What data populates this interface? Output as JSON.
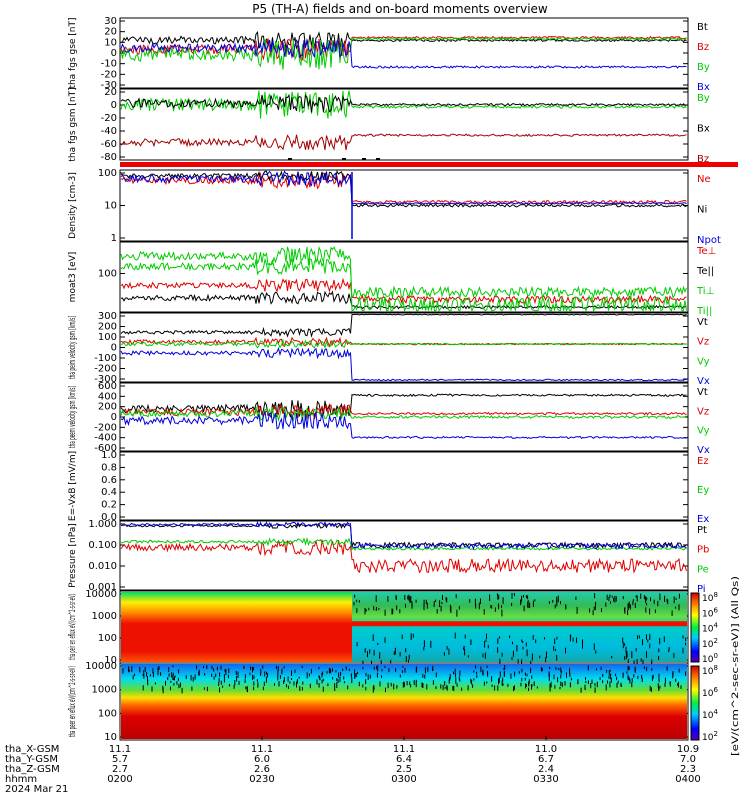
{
  "title": "P5 (TH-A) fields and on-board moments overview",
  "x_ticks": [
    "0200",
    "0230",
    "0300",
    "0330",
    "0400"
  ],
  "ephemeris": {
    "row_labels": [
      "tha_X-GSM",
      "tha_Y-GSM",
      "tha_Z-GSM",
      "hhmm",
      "2024 Mar 21"
    ],
    "x_gsm": [
      "11.1",
      "11.1",
      "11.1",
      "11.0",
      "10.9"
    ],
    "y_gsm": [
      "5.7",
      "6.0",
      "6.4",
      "6.7",
      "7.0"
    ],
    "z_gsm": [
      "2.7",
      "2.6",
      "2.5",
      "2.4",
      "2.3"
    ]
  },
  "colorbar": {
    "label": "[eV/(cm^2-sec-sr-eV)] (All Qs)",
    "ticks_top": [
      "10^8",
      "10^6",
      "10^4",
      "10^2",
      "10^0"
    ],
    "ticks_bottom": [
      "10^8",
      "10^6",
      "10^4",
      "10^2"
    ]
  },
  "colors": {
    "black": "#000000",
    "red": "#e00000",
    "green": "#00cc00",
    "blue": "#0000e0",
    "darkred": "#a00000"
  },
  "chart_data": [
    {
      "type": "line",
      "ylabel": "tha fgs gse [nT]",
      "yticks": [
        "30",
        "20",
        "10",
        "0",
        "-10",
        "-20",
        "-30"
      ],
      "legend": [
        {
          "name": "Bt",
          "color": "#000000"
        },
        {
          "name": "Bz",
          "color": "#e00000"
        },
        {
          "name": "By",
          "color": "#00cc00"
        },
        {
          "name": "Bx",
          "color": "#0000e0"
        }
      ]
    },
    {
      "type": "line",
      "ylabel": "tha fgs gsm [nT]",
      "yticks": [
        "20",
        "0",
        "-20",
        "-40",
        "-60",
        "-80"
      ],
      "legend": [
        {
          "name": "By",
          "color": "#00cc00"
        },
        {
          "name": "Bx",
          "color": "#000000"
        },
        {
          "name": "Bz",
          "color": "#a00000"
        }
      ]
    },
    {
      "type": "line",
      "ylabel": "Density [cm-3]",
      "yticks": [
        "100",
        "10",
        "1"
      ],
      "legend": [
        {
          "name": "Ne",
          "color": "#e00000"
        },
        {
          "name": "Ni",
          "color": "#000000"
        },
        {
          "name": "Npot",
          "color": "#0000e0"
        }
      ]
    },
    {
      "type": "line",
      "ylabel": "moat3 [eV]",
      "yticks": [
        "100"
      ],
      "legend": [
        {
          "name": "Te⊥",
          "color": "#e00000"
        },
        {
          "name": "Te||",
          "color": "#000000"
        },
        {
          "name": "Ti⊥",
          "color": "#00cc00"
        },
        {
          "name": "Ti||",
          "color": "#00cc00"
        }
      ]
    },
    {
      "type": "line",
      "ylabel": "tha peim velocity gsm [km/s]",
      "yticks": [
        "300",
        "200",
        "100",
        "0",
        "-100",
        "-200",
        "-300"
      ],
      "legend": [
        {
          "name": "Vt",
          "color": "#000000"
        },
        {
          "name": "Vz",
          "color": "#e00000"
        },
        {
          "name": "Vy",
          "color": "#00cc00"
        },
        {
          "name": "Vx",
          "color": "#0000e0"
        }
      ]
    },
    {
      "type": "line",
      "ylabel": "tha peem velocity gsm [km/s]",
      "yticks": [
        "600",
        "400",
        "200",
        "0",
        "-200",
        "-400",
        "-600"
      ],
      "legend": [
        {
          "name": "Vt",
          "color": "#000000"
        },
        {
          "name": "Vz",
          "color": "#e00000"
        },
        {
          "name": "Vy",
          "color": "#00cc00"
        },
        {
          "name": "Vx",
          "color": "#0000e0"
        }
      ]
    },
    {
      "type": "line",
      "ylabel": "E=-VxB [mV/m]",
      "yticks": [
        "1.0",
        "0.8",
        "0.6",
        "0.4",
        "0.2",
        "0.0"
      ],
      "legend": [
        {
          "name": "Ez",
          "color": "#e00000"
        },
        {
          "name": "Ey",
          "color": "#00cc00"
        },
        {
          "name": "Ex",
          "color": "#0000e0"
        }
      ]
    },
    {
      "type": "line",
      "ylabel": "Pressure [nPa]",
      "yticks": [
        "1.000",
        "0.100",
        "0.010",
        "0.001"
      ],
      "legend": [
        {
          "name": "Pt",
          "color": "#000000"
        },
        {
          "name": "Pb",
          "color": "#e00000"
        },
        {
          "name": "Pe",
          "color": "#00cc00"
        },
        {
          "name": "Pi",
          "color": "#0000e0"
        }
      ]
    },
    {
      "type": "heatmap",
      "ylabel": "tha peir en eflux eV/(cm^2-s-sr-eV)",
      "yticks": [
        "10000",
        "1000",
        "100",
        "10"
      ]
    },
    {
      "type": "heatmap",
      "ylabel": "tha peer en eflux eV/(cm^2-s-sr-eV)",
      "yticks": [
        "10000",
        "1000",
        "100",
        "10"
      ]
    }
  ]
}
